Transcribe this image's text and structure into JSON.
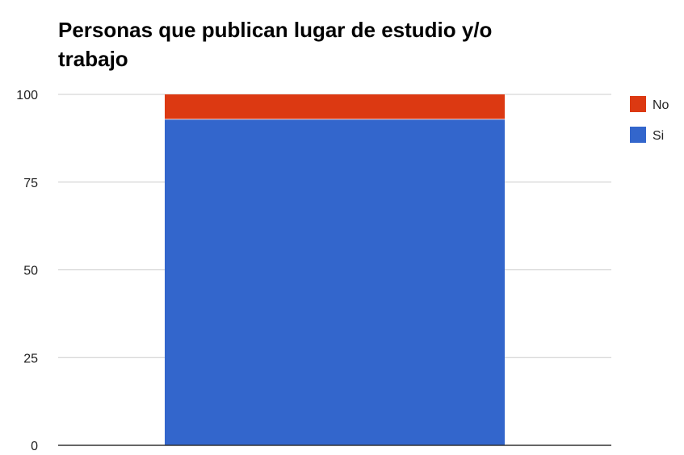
{
  "chart_data": {
    "type": "bar",
    "stacked": true,
    "title": "Personas que publican lugar de estudio y/o trabajo",
    "title_lines": [
      "Personas que publican lugar de estudio y/o",
      "trabajo"
    ],
    "xlabel": "",
    "ylabel": "",
    "ylim": [
      0,
      100
    ],
    "yticks": [
      0,
      25,
      50,
      75,
      100
    ],
    "ytick_labels": [
      "0",
      "25",
      "50",
      "75",
      "100"
    ],
    "grid": true,
    "legend_position": "right",
    "categories": [
      ""
    ],
    "series": [
      {
        "name": "Si",
        "values": [
          93
        ],
        "color": "#3366cc"
      },
      {
        "name": "No",
        "values": [
          7
        ],
        "color": "#dc3912"
      }
    ],
    "legend_order": [
      "No",
      "Si"
    ]
  }
}
